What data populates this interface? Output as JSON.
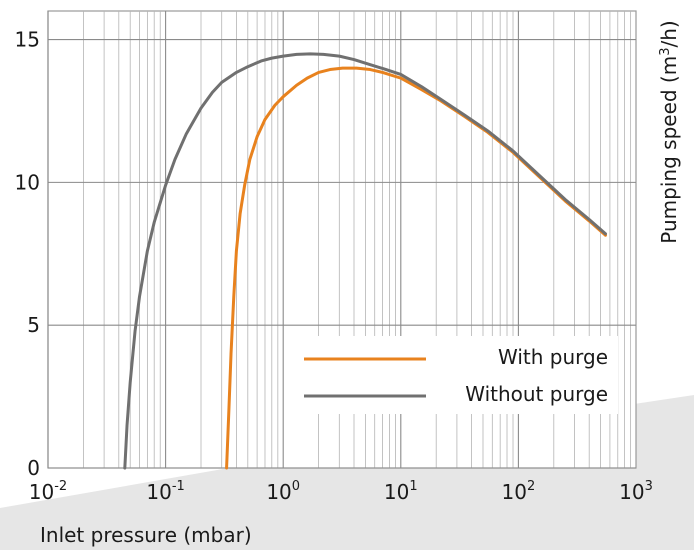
{
  "chart_data": {
    "type": "line",
    "title": "",
    "xlabel": "Inlet pressure (mbar)",
    "ylabel": "Pumping speed (m³/h)",
    "ylabel_parts": {
      "before": "Pumping speed (m",
      "sup": "3",
      "after": "/h)"
    },
    "xscale": "log",
    "xlim": [
      0.01,
      1000
    ],
    "ylim": [
      0,
      16
    ],
    "grid": true,
    "legend_position": "lower-right",
    "x_ticks": [
      {
        "base": "10",
        "exp": "-2",
        "value": 0.01
      },
      {
        "base": "10",
        "exp": "-1",
        "value": 0.1
      },
      {
        "base": "10",
        "exp": "0",
        "value": 1
      },
      {
        "base": "10",
        "exp": "1",
        "value": 10
      },
      {
        "base": "10",
        "exp": "2",
        "value": 100
      },
      {
        "base": "10",
        "exp": "3",
        "value": 1000
      }
    ],
    "y_ticks": [
      {
        "label": "0",
        "value": 0
      },
      {
        "label": "5",
        "value": 5
      },
      {
        "label": "10",
        "value": 10
      },
      {
        "label": "15",
        "value": 15
      }
    ],
    "series": [
      {
        "name": "With purge",
        "color": "#e8821e",
        "x": [
          0.33,
          0.345,
          0.36,
          0.38,
          0.4,
          0.43,
          0.47,
          0.52,
          0.6,
          0.7,
          0.85,
          1.0,
          1.3,
          1.6,
          2.0,
          2.5,
          3.2,
          4.2,
          5.5,
          7.0,
          10,
          15,
          22,
          35,
          55,
          90,
          150,
          250,
          400,
          550
        ],
        "y": [
          0.0,
          2.0,
          4.0,
          6.0,
          7.6,
          8.9,
          9.9,
          10.8,
          11.6,
          12.2,
          12.7,
          13.0,
          13.4,
          13.65,
          13.85,
          13.95,
          14.0,
          14.0,
          13.95,
          13.85,
          13.65,
          13.25,
          12.85,
          12.3,
          11.75,
          11.05,
          10.2,
          9.35,
          8.65,
          8.15
        ]
      },
      {
        "name": "Without purge",
        "color": "#707070",
        "x": [
          0.045,
          0.047,
          0.05,
          0.055,
          0.06,
          0.07,
          0.08,
          0.1,
          0.12,
          0.15,
          0.2,
          0.25,
          0.3,
          0.4,
          0.5,
          0.65,
          0.8,
          1.0,
          1.3,
          1.7,
          2.2,
          3.0,
          4.0,
          5.5,
          7.5,
          10,
          15,
          22,
          35,
          55,
          90,
          150,
          250,
          400,
          550
        ],
        "y": [
          0.0,
          1.5,
          3.0,
          4.8,
          6.0,
          7.6,
          8.6,
          9.9,
          10.8,
          11.7,
          12.6,
          13.15,
          13.5,
          13.85,
          14.05,
          14.25,
          14.35,
          14.42,
          14.48,
          14.5,
          14.48,
          14.42,
          14.3,
          14.12,
          13.95,
          13.78,
          13.35,
          12.9,
          12.35,
          11.8,
          11.1,
          10.25,
          9.4,
          8.7,
          8.2
        ]
      }
    ]
  }
}
